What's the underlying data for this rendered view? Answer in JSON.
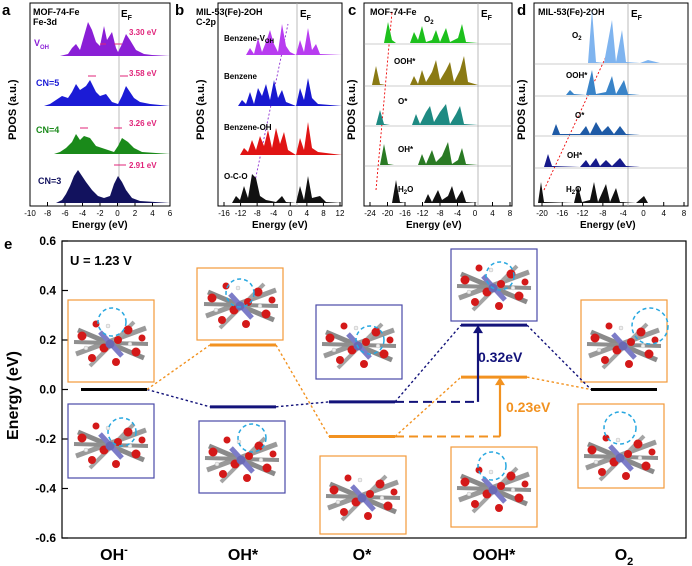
{
  "panels": [
    {
      "letter": "a",
      "title_lines": [
        "MOF-74-Fe",
        "Fe-3d"
      ],
      "ylabel": "PDOS (a.u.)",
      "xlabel": "Energy (eV)",
      "fermi_label": "E",
      "fermi_sub": "F",
      "xticks": [
        "-10",
        "-8",
        "-6",
        "-4",
        "-2",
        "0",
        "2",
        "4",
        "6"
      ],
      "traces": [
        {
          "label": "V",
          "label_sub": "OH",
          "color": "#8a1fd6",
          "gap": "3.30 eV"
        },
        {
          "label": "CN=5",
          "label_sub": "",
          "color": "#1b1bd6",
          "gap": "3.58 eV"
        },
        {
          "label": "CN=4",
          "label_sub": "",
          "color": "#1a8a1a",
          "gap": "3.26 eV"
        },
        {
          "label": "CN=3",
          "label_sub": "",
          "color": "#12125e",
          "gap": "2.91 eV"
        }
      ],
      "gap_color": "#e0247a"
    },
    {
      "letter": "b",
      "title_lines": [
        "MIL-53(Fe)-2OH",
        "C-2p"
      ],
      "ylabel": "PDOS (a.u.)",
      "xlabel": "Energy (eV)",
      "fermi_label": "E",
      "fermi_sub": "F",
      "xticks": [
        "-16",
        "-12",
        "-8",
        "-4",
        "0",
        "4",
        "8",
        "12"
      ],
      "traces": [
        {
          "label": "Benzene-V",
          "label_sub": "OH",
          "color": "#b83cf0"
        },
        {
          "label": "Benzene",
          "label_sub": "",
          "color": "#1818d0"
        },
        {
          "label": "Benzene-OH",
          "label_sub": "",
          "color": "#e01414"
        },
        {
          "label": "O-C-O",
          "label_sub": "",
          "color": "#111111"
        }
      ]
    },
    {
      "letter": "c",
      "title_lines": [
        "MOF-74-Fe"
      ],
      "ylabel": "PDOS (a.u.)",
      "xlabel": "Energy (eV)",
      "fermi_label": "E",
      "fermi_sub": "F",
      "xticks": [
        "-24",
        "-20",
        "-16",
        "-12",
        "-8",
        "-4",
        "0",
        "4",
        "8"
      ],
      "traces": [
        {
          "label": "O",
          "label_sub": "2",
          "color": "#1dc01d"
        },
        {
          "label": "OOH*",
          "label_sub": "",
          "color": "#8a7a14"
        },
        {
          "label": "O*",
          "label_sub": "",
          "color": "#1e8a82"
        },
        {
          "label": "OH*",
          "label_sub": "",
          "color": "#2a7a24"
        },
        {
          "label": "H",
          "label_sub": "2",
          "label_tail": "O",
          "color": "#111111"
        }
      ]
    },
    {
      "letter": "d",
      "title_lines": [
        "MIL-53(Fe)-2OH"
      ],
      "ylabel": "PDOS (a.u.)",
      "xlabel": "Energy (eV)",
      "fermi_label": "E",
      "fermi_sub": "F",
      "xticks": [
        "-20",
        "-16",
        "-12",
        "-8",
        "-4",
        "0",
        "4",
        "8"
      ],
      "traces": [
        {
          "label": "O",
          "label_sub": "2",
          "color": "#7fb4ef"
        },
        {
          "label": "OOH*",
          "label_sub": "",
          "color": "#3a84c8"
        },
        {
          "label": "O*",
          "label_sub": "",
          "color": "#1e5aa6"
        },
        {
          "label": "OH*",
          "label_sub": "",
          "color": "#161a8a"
        },
        {
          "label": "H",
          "label_sub": "2",
          "label_tail": "O",
          "color": "#111111"
        }
      ]
    }
  ],
  "panel_e": {
    "letter": "e",
    "potential": "U = 1.23 V",
    "ylabel": "Energy (eV)",
    "yticks": [
      "0.6",
      "0.4",
      "0.2",
      "0.0",
      "-0.2",
      "-0.4",
      "-0.6"
    ],
    "gap_blue": "0.32eV",
    "gap_orange": "0.23eV",
    "colors": {
      "black": "#000000",
      "blue": "#13137a",
      "orange": "#f29220",
      "struct_blue": "#4a4aa8",
      "struct_orange": "#f29a3a"
    }
  },
  "chart_data": {
    "type": "line",
    "title": "",
    "xlabel": "",
    "ylabel": "Energy (eV)",
    "ylim": [
      -0.6,
      0.6
    ],
    "categories": [
      "OH",
      "OH*",
      "O*",
      "OOH*",
      "O2"
    ],
    "category_labels": [
      {
        "main": "OH",
        "sup": "-",
        "sub": ""
      },
      {
        "main": "OH*",
        "sup": "",
        "sub": ""
      },
      {
        "main": "O*",
        "sup": "",
        "sub": ""
      },
      {
        "main": "OOH*",
        "sup": "",
        "sub": ""
      },
      {
        "main": "O",
        "sup": "",
        "sub": "2"
      }
    ],
    "series": [
      {
        "key": "black",
        "values": [
          0.0,
          null,
          null,
          null,
          0.0
        ],
        "color": "#000000"
      },
      {
        "key": "blue",
        "values": [
          0.0,
          -0.07,
          -0.05,
          0.26,
          0.0
        ],
        "color": "#13137a"
      },
      {
        "key": "orange",
        "values": [
          0.0,
          0.18,
          -0.19,
          0.05,
          0.0
        ],
        "color": "#f29220"
      }
    ]
  }
}
